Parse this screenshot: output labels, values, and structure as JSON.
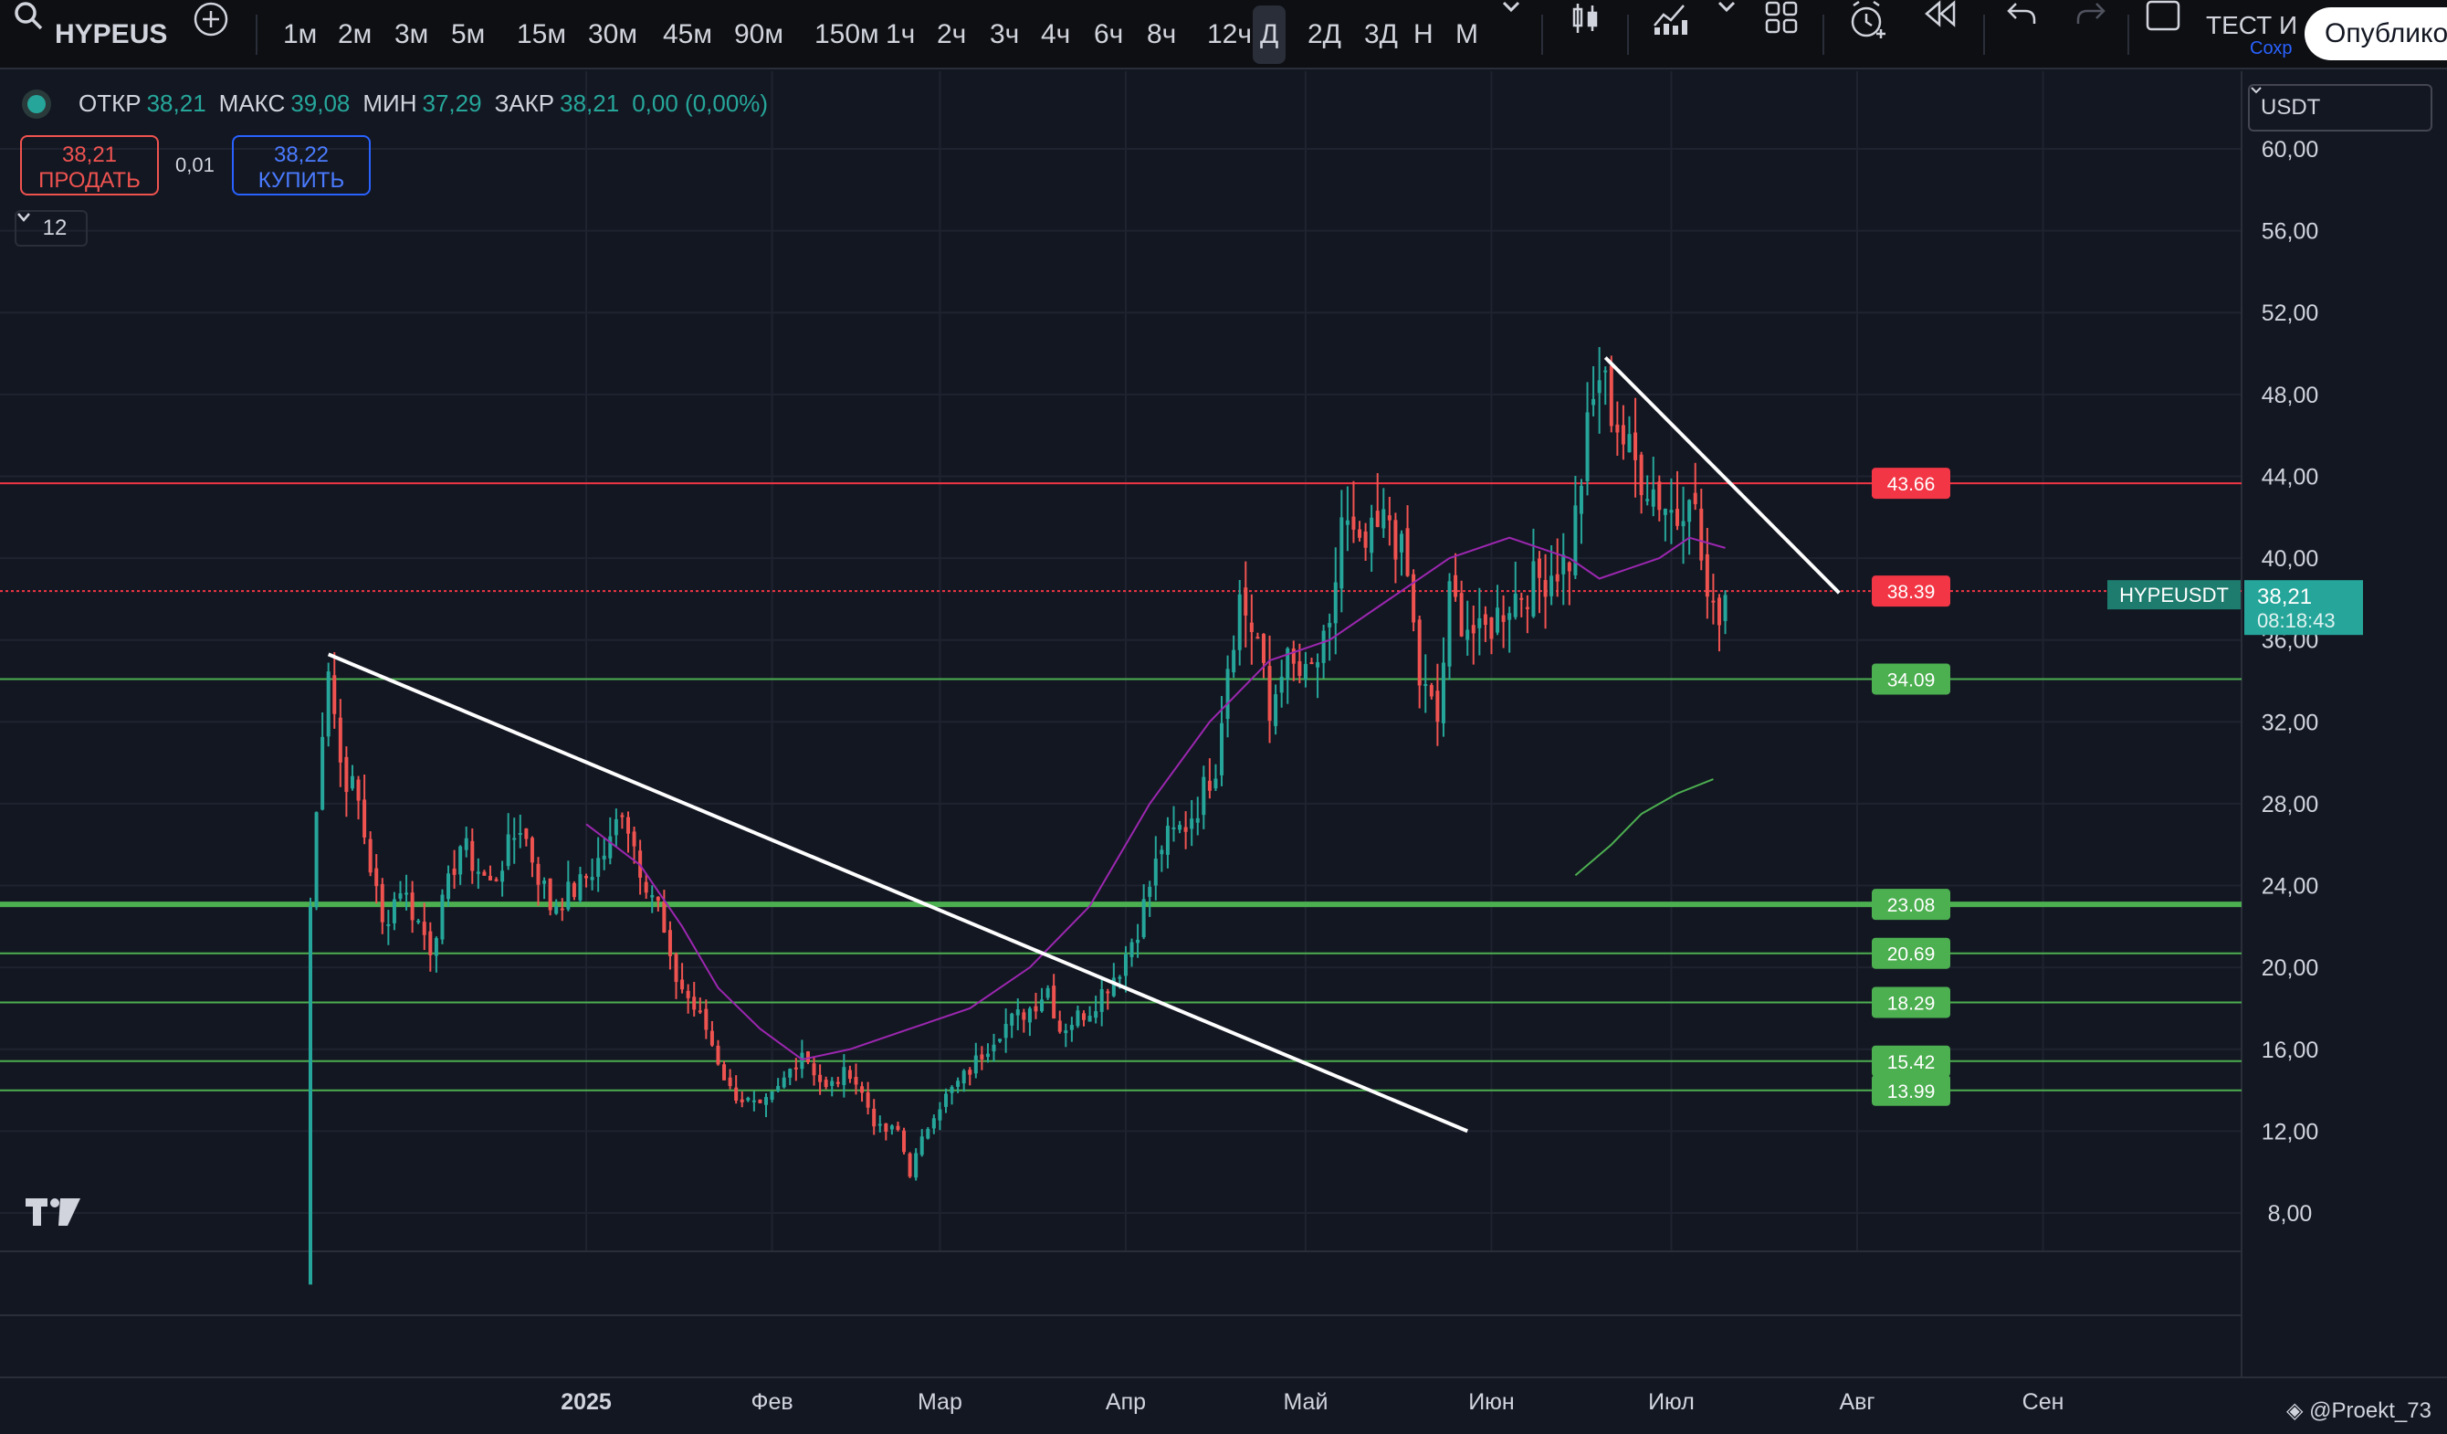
{
  "toolbar": {
    "symbol": "HYPEUS",
    "intervals": [
      "1м",
      "2м",
      "3м",
      "5м",
      "15м",
      "30м",
      "45м",
      "90м",
      "150м",
      "1ч",
      "2ч",
      "3ч",
      "4ч",
      "6ч",
      "8ч",
      "12ч",
      "Д",
      "2Д",
      "3Д",
      "Н",
      "М"
    ],
    "active_interval": "Д",
    "test_label": "ТЕСТ И",
    "save_label": "Сохр",
    "publish_label": "Опублико"
  },
  "legend": {
    "open_label": "ОТКР",
    "open_value": "38,21",
    "high_label": "МАКС",
    "high_value": "39,08",
    "low_label": "МИН",
    "low_value": "37,29",
    "close_label": "ЗАКР",
    "close_value": "38,21",
    "change": "0,00 (0,00%)"
  },
  "trade": {
    "sell_price": "38,21",
    "sell_label": "ПРОДАТЬ",
    "spread": "0,01",
    "buy_price": "38,22",
    "buy_label": "КУПИТЬ"
  },
  "indicators_count": "12",
  "currency": "USDT",
  "price_scale": [
    "60,00",
    "56,00",
    "52,00",
    "48,00",
    "44,00",
    "40,00",
    "36,00",
    "32,00",
    "28,00",
    "24,00",
    "20,00",
    "16,00",
    "12,00",
    "8,00"
  ],
  "time_scale": [
    "2025",
    "Фев",
    "Мар",
    "Апр",
    "Май",
    "Июн",
    "Июл",
    "Авг",
    "Сен"
  ],
  "horizontal_levels": [
    {
      "value": 43.66,
      "label": "43.66",
      "color": "#f23645"
    },
    {
      "value": 38.39,
      "label": "38.39",
      "color": "#f23645",
      "dotted": true
    },
    {
      "value": 34.09,
      "label": "34.09",
      "color": "#4caf50"
    },
    {
      "value": 23.08,
      "label": "23.08",
      "color": "#4caf50",
      "thick": true
    },
    {
      "value": 20.69,
      "label": "20.69",
      "color": "#4caf50"
    },
    {
      "value": 18.29,
      "label": "18.29",
      "color": "#4caf50"
    },
    {
      "value": 15.42,
      "label": "15.42",
      "color": "#4caf50"
    },
    {
      "value": 13.99,
      "label": "13.99",
      "color": "#4caf50"
    }
  ],
  "last_price": {
    "ticker": "HYPEUSDT",
    "price": "38,21",
    "countdown": "08:18:43",
    "value": 38.21
  },
  "watermark": "@Proekt_73",
  "colors": {
    "up": "#26a69a",
    "down": "#ef5350",
    "ma_short": "#9c27b0",
    "ma_long": "#4caf50",
    "trendline": "#ffffff"
  },
  "chart_data": {
    "type": "candlestick",
    "ylim": [
      6.5,
      62
    ],
    "x_range": [
      0,
      300
    ],
    "month_days": [
      46,
      77,
      105,
      136,
      166,
      197,
      227,
      258,
      289
    ],
    "anchors": [
      [
        0,
        23
      ],
      [
        2,
        32
      ],
      [
        3,
        35
      ],
      [
        5,
        30
      ],
      [
        8,
        28
      ],
      [
        12,
        22
      ],
      [
        15,
        24
      ],
      [
        20,
        21
      ],
      [
        25,
        26
      ],
      [
        30,
        24
      ],
      [
        35,
        27
      ],
      [
        40,
        23
      ],
      [
        45,
        24
      ],
      [
        50,
        26
      ],
      [
        52,
        28
      ],
      [
        55,
        25
      ],
      [
        58,
        23
      ],
      [
        60,
        20
      ],
      [
        64,
        18
      ],
      [
        66,
        17
      ],
      [
        70,
        14
      ],
      [
        75,
        13
      ],
      [
        78,
        14
      ],
      [
        82,
        16
      ],
      [
        86,
        14
      ],
      [
        90,
        15
      ],
      [
        95,
        12
      ],
      [
        98,
        12
      ],
      [
        100,
        10
      ],
      [
        104,
        13
      ],
      [
        110,
        15
      ],
      [
        115,
        17
      ],
      [
        120,
        18
      ],
      [
        123,
        19
      ],
      [
        125,
        17
      ],
      [
        130,
        18
      ],
      [
        135,
        20
      ],
      [
        138,
        22
      ],
      [
        142,
        26
      ],
      [
        146,
        27
      ],
      [
        148,
        28
      ],
      [
        151,
        30
      ],
      [
        153,
        35
      ],
      [
        155,
        38
      ],
      [
        158,
        36
      ],
      [
        160,
        32
      ],
      [
        162,
        35
      ],
      [
        166,
        34
      ],
      [
        170,
        36
      ],
      [
        172,
        42
      ],
      [
        175,
        40
      ],
      [
        180,
        42
      ],
      [
        183,
        39
      ],
      [
        185,
        34
      ],
      [
        188,
        32
      ],
      [
        190,
        38
      ],
      [
        195,
        36
      ],
      [
        200,
        38
      ],
      [
        205,
        39
      ],
      [
        210,
        40
      ],
      [
        213,
        46
      ],
      [
        215,
        49
      ],
      [
        220,
        45
      ],
      [
        225,
        43
      ],
      [
        228,
        42
      ],
      [
        230,
        44
      ],
      [
        233,
        38
      ],
      [
        234,
        37
      ],
      [
        236,
        38.2
      ]
    ],
    "ma_short": [
      [
        46,
        27
      ],
      [
        55,
        25
      ],
      [
        62,
        22
      ],
      [
        68,
        19
      ],
      [
        75,
        17
      ],
      [
        82,
        15.5
      ],
      [
        90,
        16
      ],
      [
        100,
        17
      ],
      [
        110,
        18
      ],
      [
        120,
        20
      ],
      [
        130,
        23
      ],
      [
        140,
        28
      ],
      [
        150,
        32
      ],
      [
        160,
        35
      ],
      [
        170,
        36
      ],
      [
        180,
        38
      ],
      [
        190,
        40
      ],
      [
        200,
        41
      ],
      [
        210,
        40
      ],
      [
        215,
        39
      ],
      [
        225,
        40
      ],
      [
        230,
        41
      ],
      [
        236,
        40.5
      ]
    ],
    "ma_long": [
      [
        211,
        24.5
      ],
      [
        217,
        26
      ],
      [
        222,
        27.5
      ],
      [
        228,
        28.5
      ],
      [
        234,
        29.2
      ]
    ],
    "trendlines": [
      {
        "from": [
          3,
          35.3
        ],
        "to": [
          193,
          12
        ]
      },
      {
        "from": [
          216,
          49.8
        ],
        "to": [
          255,
          38.3
        ]
      }
    ]
  }
}
